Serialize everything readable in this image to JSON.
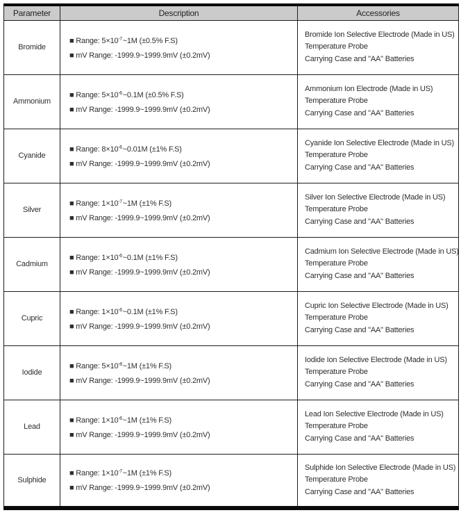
{
  "table": {
    "headers": [
      "Parameter",
      "Description",
      "Accessories"
    ],
    "rows": [
      {
        "parameter": "Bromide",
        "range": {
          "pre": "■ Range: 5×10",
          "sup": "-7",
          "post": "~1M (±0.5% F.S)"
        },
        "mv_range": "■ mV Range: -1999.9~1999.9mV (±0.2mV)",
        "accessories": [
          "Bromide Ion Selective Electrode (Made in US)",
          "Temperature Probe",
          "Carrying Case and \"AA\" Batteries"
        ]
      },
      {
        "parameter": "Ammonium",
        "range": {
          "pre": "■ Range: 5×10",
          "sup": "-6",
          "post": "~0.1M (±0.5% F.S)"
        },
        "mv_range": "■ mV Range: -1999.9~1999.9mV (±0.2mV)",
        "accessories": [
          "Ammonium Ion Electrode (Made in US)",
          "Temperature Probe",
          "Carrying Case and \"AA\" Batteries"
        ]
      },
      {
        "parameter": "Cyanide",
        "range": {
          "pre": "■ Range: 8×10",
          "sup": "-6",
          "post": "~0.01M (±1% F.S)"
        },
        "mv_range": "■ mV Range: -1999.9~1999.9mV (±0.2mV)",
        "accessories": [
          "Cyanide Ion Selective Electrode (Made in US)",
          "Temperature Probe",
          "Carrying Case and \"AA\" Batteries"
        ]
      },
      {
        "parameter": "Silver",
        "range": {
          "pre": "■ Range: 1×10",
          "sup": "-7",
          "post": "~1M (±1% F.S)"
        },
        "mv_range": "■ mV Range: -1999.9~1999.9mV (±0.2mV)",
        "accessories": [
          "Silver Ion Selective Electrode (Made in US)",
          "Temperature Probe",
          "Carrying Case and \"AA\" Batteries"
        ]
      },
      {
        "parameter": "Cadmium",
        "range": {
          "pre": "■ Range: 1×10",
          "sup": "-6",
          "post": "~0.1M (±1% F.S)"
        },
        "mv_range": "■ mV Range: -1999.9~1999.9mV (±0.2mV)",
        "accessories": [
          "Cadmium Ion Selective Electrode (Made in US)",
          "Temperature Probe",
          "Carrying Case and \"AA\" Batteries"
        ]
      },
      {
        "parameter": "Cupric",
        "range": {
          "pre": "■ Range: 1×10",
          "sup": "-6",
          "post": "~0.1M (±1% F.S)"
        },
        "mv_range": "■ mV Range: -1999.9~1999.9mV (±0.2mV)",
        "accessories": [
          "Cupric Ion Selective Electrode (Made in US)",
          "Temperature Probe",
          "Carrying Case and \"AA\" Batteries"
        ]
      },
      {
        "parameter": "Iodide",
        "range": {
          "pre": "■ Range: 5×10",
          "sup": "-8",
          "post": "~1M (±1% F.S)"
        },
        "mv_range": "■ mV Range: -1999.9~1999.9mV (±0.2mV)",
        "accessories": [
          "Iodide Ion Selective Electrode (Made in US)",
          "Temperature Probe",
          "Carrying Case and \"AA\" Batteries"
        ]
      },
      {
        "parameter": "Lead",
        "range": {
          "pre": "■ Range: 1×10",
          "sup": "-6",
          "post": "~1M (±1% F.S)"
        },
        "mv_range": "■ mV Range: -1999.9~1999.9mV (±0.2mV)",
        "accessories": [
          "Lead Ion Selective Electrode (Made in US)",
          "Temperature Probe",
          "Carrying Case and \"AA\" Batteries"
        ]
      },
      {
        "parameter": "Sulphide",
        "range": {
          "pre": "■ Range: 1×10",
          "sup": "-7",
          "post": "~1M (±1% F.S)"
        },
        "mv_range": "■ mV Range: -1999.9~1999.9mV (±0.2mV)",
        "accessories": [
          "Sulphide Ion Selective Electrode (Made in US)",
          "Temperature Probe",
          "Carrying Case and \"AA\" Batteries"
        ]
      }
    ]
  },
  "colors": {
    "header_bg": "#cbcbcb",
    "border": "#1c1c1c",
    "text": "#2e2e2e"
  }
}
